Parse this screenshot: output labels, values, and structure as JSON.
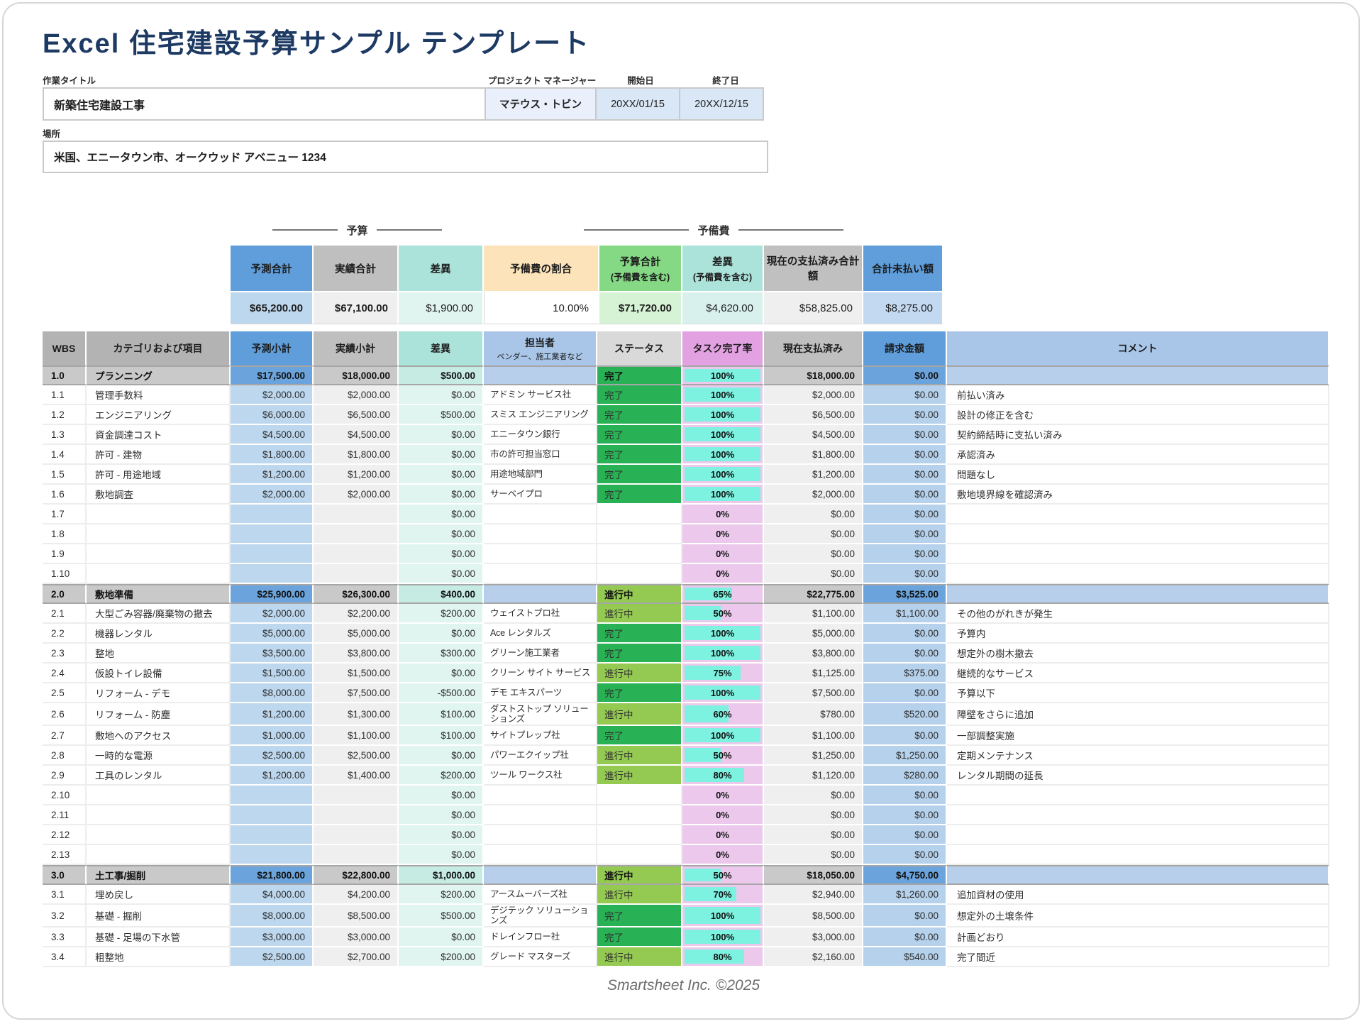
{
  "page": {
    "title": "Excel 住宅建設予算サンプル テンプレート",
    "footer": "Smartsheet Inc. ©2025"
  },
  "form": {
    "work_title_label": "作業タイトル",
    "work_title_value": "新築住宅建設工事",
    "pm_label": "プロジェクト マネージャー",
    "pm_value": "マテウス・トビン",
    "start_label": "開始日",
    "start_value": "20XX/01/15",
    "end_label": "終了日",
    "end_value": "20XX/12/15",
    "location_label": "場所",
    "location_value": "米国、エニータウン市、オークウッド アベニュー 1234"
  },
  "summary": {
    "group_budget": "予算",
    "group_contingency": "予備費",
    "cols": [
      {
        "id": "forecast-total",
        "label": "予測合計",
        "value": "$65,200.00",
        "style": "blue",
        "bold": true
      },
      {
        "id": "actual-total",
        "label": "実績合計",
        "value": "$67,100.00",
        "style": "gray",
        "bold": true
      },
      {
        "id": "variance-total",
        "label": "差異",
        "value": "$1,900.00",
        "style": "teal",
        "bold": false
      },
      {
        "id": "contingency-rate",
        "label": "予備費の割合",
        "value": "10.00%",
        "style": "wheat",
        "bold": false
      },
      {
        "id": "budget-total-incl",
        "label": "予算合計",
        "sublabel": "(予備費を含む)",
        "value": "$71,720.00",
        "style": "green",
        "bold": true
      },
      {
        "id": "variance-incl",
        "label": "差異",
        "sublabel": "(予備費を含む)",
        "value": "$4,620.00",
        "style": "teal2",
        "bold": false
      },
      {
        "id": "paid-to-date-total",
        "label": "現在の支払済み合計額",
        "value": "$58,825.00",
        "style": "gray2",
        "bold": false
      },
      {
        "id": "total-unpaid",
        "label": "合計未払い額",
        "value": "$8,275.00",
        "style": "blue2",
        "bold": false
      }
    ]
  },
  "table": {
    "statuses": {
      "complete": "完了",
      "in_progress": "進行中"
    },
    "columns": [
      {
        "id": "wbs",
        "label": "WBS"
      },
      {
        "id": "category",
        "label": "カテゴリおよび項目"
      },
      {
        "id": "forecast",
        "label": "予測小計"
      },
      {
        "id": "actual",
        "label": "実績小計"
      },
      {
        "id": "variance",
        "label": "差異"
      },
      {
        "id": "assignee",
        "label": "担当者",
        "sublabel": "ベンダー、施工業者など"
      },
      {
        "id": "status",
        "label": "ステータス"
      },
      {
        "id": "pct",
        "label": "タスク完了率"
      },
      {
        "id": "paid",
        "label": "現在支払済み"
      },
      {
        "id": "billed",
        "label": "請求金額"
      },
      {
        "id": "comment",
        "label": "コメント"
      }
    ],
    "rows": [
      {
        "wbs": "1.0",
        "category": "プランニング",
        "forecast": "$17,500.00",
        "actual": "$18,000.00",
        "variance": "$500.00",
        "assignee": "",
        "status": "完了",
        "pct": 100,
        "paid": "$18,000.00",
        "billed": "$0.00",
        "comment": "",
        "section": true
      },
      {
        "wbs": "1.1",
        "category": "管理手数料",
        "forecast": "$2,000.00",
        "actual": "$2,000.00",
        "variance": "$0.00",
        "assignee": "アドミン サービス社",
        "status": "完了",
        "pct": 100,
        "paid": "$2,000.00",
        "billed": "$0.00",
        "comment": "前払い済み"
      },
      {
        "wbs": "1.2",
        "category": "エンジニアリング",
        "forecast": "$6,000.00",
        "actual": "$6,500.00",
        "variance": "$500.00",
        "assignee": "スミス エンジニアリング",
        "status": "完了",
        "pct": 100,
        "paid": "$6,500.00",
        "billed": "$0.00",
        "comment": "設計の修正を含む"
      },
      {
        "wbs": "1.3",
        "category": "資金調達コスト",
        "forecast": "$4,500.00",
        "actual": "$4,500.00",
        "variance": "$0.00",
        "assignee": "エニータウン銀行",
        "status": "完了",
        "pct": 100,
        "paid": "$4,500.00",
        "billed": "$0.00",
        "comment": "契約締結時に支払い済み"
      },
      {
        "wbs": "1.4",
        "category": "許可 - 建物",
        "forecast": "$1,800.00",
        "actual": "$1,800.00",
        "variance": "$0.00",
        "assignee": "市の許可担当窓口",
        "status": "完了",
        "pct": 100,
        "paid": "$1,800.00",
        "billed": "$0.00",
        "comment": "承認済み"
      },
      {
        "wbs": "1.5",
        "category": "許可 - 用途地域",
        "forecast": "$1,200.00",
        "actual": "$1,200.00",
        "variance": "$0.00",
        "assignee": "用途地域部門",
        "status": "完了",
        "pct": 100,
        "paid": "$1,200.00",
        "billed": "$0.00",
        "comment": "問題なし"
      },
      {
        "wbs": "1.6",
        "category": "敷地調査",
        "forecast": "$2,000.00",
        "actual": "$2,000.00",
        "variance": "$0.00",
        "assignee": "サーベイプロ",
        "status": "完了",
        "pct": 100,
        "paid": "$2,000.00",
        "billed": "$0.00",
        "comment": "敷地境界線を確認済み"
      },
      {
        "wbs": "1.7",
        "category": "",
        "forecast": "",
        "actual": "",
        "variance": "$0.00",
        "assignee": "",
        "status": "",
        "pct": 0,
        "paid": "$0.00",
        "billed": "$0.00",
        "comment": ""
      },
      {
        "wbs": "1.8",
        "category": "",
        "forecast": "",
        "actual": "",
        "variance": "$0.00",
        "assignee": "",
        "status": "",
        "pct": 0,
        "paid": "$0.00",
        "billed": "$0.00",
        "comment": ""
      },
      {
        "wbs": "1.9",
        "category": "",
        "forecast": "",
        "actual": "",
        "variance": "$0.00",
        "assignee": "",
        "status": "",
        "pct": 0,
        "paid": "$0.00",
        "billed": "$0.00",
        "comment": ""
      },
      {
        "wbs": "1.10",
        "category": "",
        "forecast": "",
        "actual": "",
        "variance": "$0.00",
        "assignee": "",
        "status": "",
        "pct": 0,
        "paid": "$0.00",
        "billed": "$0.00",
        "comment": ""
      },
      {
        "wbs": "2.0",
        "category": "敷地準備",
        "forecast": "$25,900.00",
        "actual": "$26,300.00",
        "variance": "$400.00",
        "assignee": "",
        "status": "進行中",
        "pct": 65,
        "paid": "$22,775.00",
        "billed": "$3,525.00",
        "comment": "",
        "section": true
      },
      {
        "wbs": "2.1",
        "category": "大型ごみ容器/廃棄物の撤去",
        "forecast": "$2,000.00",
        "actual": "$2,200.00",
        "variance": "$200.00",
        "assignee": "ウェイストプロ社",
        "status": "進行中",
        "pct": 50,
        "paid": "$1,100.00",
        "billed": "$1,100.00",
        "comment": "その他のがれきが発生"
      },
      {
        "wbs": "2.2",
        "category": "機器レンタル",
        "forecast": "$5,000.00",
        "actual": "$5,000.00",
        "variance": "$0.00",
        "assignee": "Ace レンタルズ",
        "status": "完了",
        "pct": 100,
        "paid": "$5,000.00",
        "billed": "$0.00",
        "comment": "予算内"
      },
      {
        "wbs": "2.3",
        "category": "整地",
        "forecast": "$3,500.00",
        "actual": "$3,800.00",
        "variance": "$300.00",
        "assignee": "グリーン施工業者",
        "status": "完了",
        "pct": 100,
        "paid": "$3,800.00",
        "billed": "$0.00",
        "comment": "想定外の樹木撤去"
      },
      {
        "wbs": "2.4",
        "category": "仮設トイレ設備",
        "forecast": "$1,500.00",
        "actual": "$1,500.00",
        "variance": "$0.00",
        "assignee": "クリーン サイト サービス",
        "status": "進行中",
        "pct": 75,
        "paid": "$1,125.00",
        "billed": "$375.00",
        "comment": "継続的なサービス"
      },
      {
        "wbs": "2.5",
        "category": "リフォーム - デモ",
        "forecast": "$8,000.00",
        "actual": "$7,500.00",
        "variance": "-$500.00",
        "assignee": "デモ エキスパーツ",
        "status": "完了",
        "pct": 100,
        "paid": "$7,500.00",
        "billed": "$0.00",
        "comment": "予算以下"
      },
      {
        "wbs": "2.6",
        "category": "リフォーム - 防塵",
        "forecast": "$1,200.00",
        "actual": "$1,300.00",
        "variance": "$100.00",
        "assignee": "ダストストップ ソリューションズ",
        "status": "進行中",
        "pct": 60,
        "paid": "$780.00",
        "billed": "$520.00",
        "comment": "障壁をさらに追加"
      },
      {
        "wbs": "2.7",
        "category": "敷地へのアクセス",
        "forecast": "$1,000.00",
        "actual": "$1,100.00",
        "variance": "$100.00",
        "assignee": "サイトプレップ社",
        "status": "完了",
        "pct": 100,
        "paid": "$1,100.00",
        "billed": "$0.00",
        "comment": "一部調整実施"
      },
      {
        "wbs": "2.8",
        "category": "一時的な電源",
        "forecast": "$2,500.00",
        "actual": "$2,500.00",
        "variance": "$0.00",
        "assignee": "パワーエクイップ社",
        "status": "進行中",
        "pct": 50,
        "paid": "$1,250.00",
        "billed": "$1,250.00",
        "comment": "定期メンテナンス"
      },
      {
        "wbs": "2.9",
        "category": "工具のレンタル",
        "forecast": "$1,200.00",
        "actual": "$1,400.00",
        "variance": "$200.00",
        "assignee": "ツール ワークス社",
        "status": "進行中",
        "pct": 80,
        "paid": "$1,120.00",
        "billed": "$280.00",
        "comment": "レンタル期間の延長"
      },
      {
        "wbs": "2.10",
        "category": "",
        "forecast": "",
        "actual": "",
        "variance": "$0.00",
        "assignee": "",
        "status": "",
        "pct": 0,
        "paid": "$0.00",
        "billed": "$0.00",
        "comment": ""
      },
      {
        "wbs": "2.11",
        "category": "",
        "forecast": "",
        "actual": "",
        "variance": "$0.00",
        "assignee": "",
        "status": "",
        "pct": 0,
        "paid": "$0.00",
        "billed": "$0.00",
        "comment": ""
      },
      {
        "wbs": "2.12",
        "category": "",
        "forecast": "",
        "actual": "",
        "variance": "$0.00",
        "assignee": "",
        "status": "",
        "pct": 0,
        "paid": "$0.00",
        "billed": "$0.00",
        "comment": ""
      },
      {
        "wbs": "2.13",
        "category": "",
        "forecast": "",
        "actual": "",
        "variance": "$0.00",
        "assignee": "",
        "status": "",
        "pct": 0,
        "paid": "$0.00",
        "billed": "$0.00",
        "comment": ""
      },
      {
        "wbs": "3.0",
        "category": "土工事/掘削",
        "forecast": "$21,800.00",
        "actual": "$22,800.00",
        "variance": "$1,000.00",
        "assignee": "",
        "status": "進行中",
        "pct": 50,
        "paid": "$18,050.00",
        "billed": "$4,750.00",
        "comment": "",
        "section": true
      },
      {
        "wbs": "3.1",
        "category": "埋め戻し",
        "forecast": "$4,000.00",
        "actual": "$4,200.00",
        "variance": "$200.00",
        "assignee": "アースムーバーズ社",
        "status": "進行中",
        "pct": 70,
        "paid": "$2,940.00",
        "billed": "$1,260.00",
        "comment": "追加資材の使用"
      },
      {
        "wbs": "3.2",
        "category": "基礎 - 掘削",
        "forecast": "$8,000.00",
        "actual": "$8,500.00",
        "variance": "$500.00",
        "assignee": "デジテック ソリューションズ",
        "status": "完了",
        "pct": 100,
        "paid": "$8,500.00",
        "billed": "$0.00",
        "comment": "想定外の土壌条件"
      },
      {
        "wbs": "3.3",
        "category": "基礎 - 足場の下水管",
        "forecast": "$3,000.00",
        "actual": "$3,000.00",
        "variance": "$0.00",
        "assignee": "ドレインフロー社",
        "status": "完了",
        "pct": 100,
        "paid": "$3,000.00",
        "billed": "$0.00",
        "comment": "計画どおり"
      },
      {
        "wbs": "3.4",
        "category": "粗整地",
        "forecast": "$2,500.00",
        "actual": "$2,700.00",
        "variance": "$200.00",
        "assignee": "グレード マスターズ",
        "status": "進行中",
        "pct": 80,
        "paid": "$2,160.00",
        "billed": "$540.00",
        "comment": "完了間近"
      }
    ]
  },
  "colors": {
    "title": "#1d3a63",
    "header_blue": "#5f9edb",
    "header_gray": "#bfbfbf",
    "header_teal": "#abe2d9",
    "header_wheat": "#fce3ba",
    "header_green": "#85d985",
    "header_pink": "#e2a2e2",
    "header_lightblue": "#a9c6e8",
    "status_complete": "#29b255",
    "status_in_progress": "#94c952",
    "progress_fill": "#7df2e0",
    "progress_rest": "#ecc9ec",
    "cell_blue": "#bdd7ee",
    "cell_gray": "#efefef",
    "cell_teal": "#e1f5f0",
    "section_blue": "#6ba4dc",
    "section_gray": "#c9c9c9"
  }
}
